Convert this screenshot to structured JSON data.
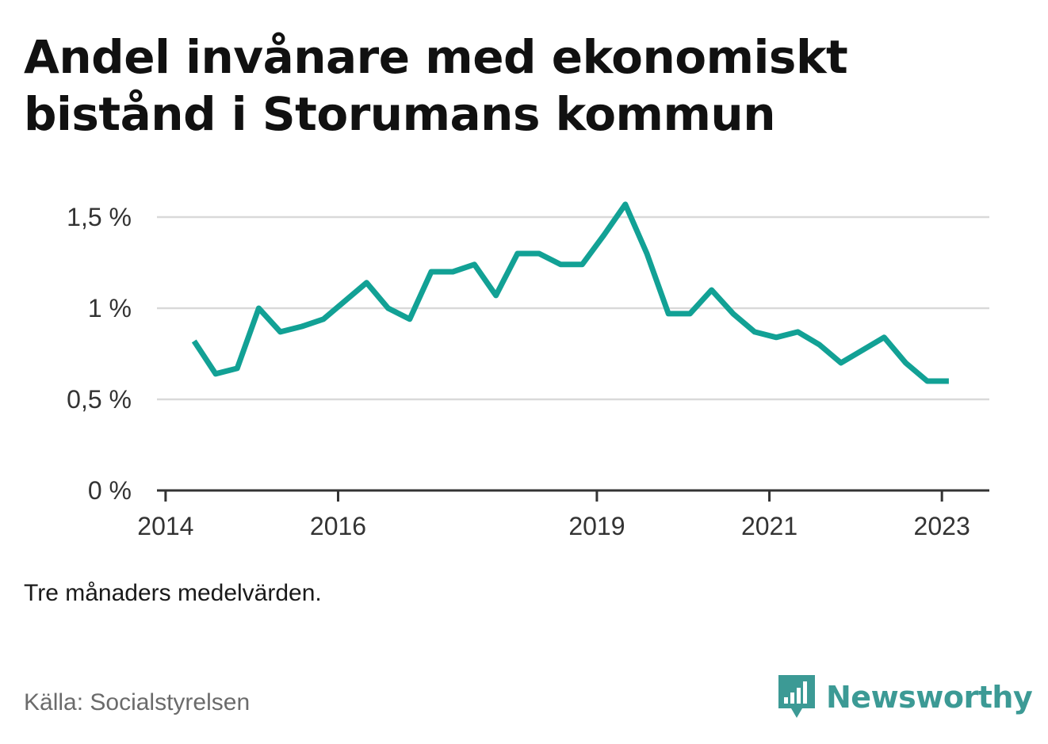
{
  "title": "Andel invånare med ekonomiskt bistånd i Storumans kommun",
  "note": "Tre månaders medelvärden.",
  "source": "Källa: Socialstyrelsen",
  "brand": {
    "name": "Newsworthy",
    "color": "#3c9a95",
    "logo_icon": "bar-chart-speech-bubble-icon"
  },
  "chart_data": {
    "type": "line",
    "title": "Andel invånare med ekonomiskt bistånd i Storumans kommun",
    "xlabel": "",
    "ylabel": "",
    "line_color": "#12a195",
    "grid": true,
    "ylim": [
      0,
      1.6
    ],
    "y_ticks": [
      {
        "value": 0,
        "label": "0 %"
      },
      {
        "value": 0.5,
        "label": "0,5 %"
      },
      {
        "value": 1,
        "label": "1 %"
      },
      {
        "value": 1.5,
        "label": "1,5 %"
      }
    ],
    "x_ticks": [
      {
        "value": 2014,
        "label": "2014"
      },
      {
        "value": 2016,
        "label": "2016"
      },
      {
        "value": 2019,
        "label": "2019"
      },
      {
        "value": 2021,
        "label": "2021"
      },
      {
        "value": 2023,
        "label": "2023"
      }
    ],
    "xlim": [
      2013.9,
      2023.55
    ],
    "x": [
      2014.33,
      2014.58,
      2014.83,
      2015.08,
      2015.33,
      2015.58,
      2015.83,
      2016.08,
      2016.33,
      2016.58,
      2016.83,
      2017.08,
      2017.33,
      2017.58,
      2017.83,
      2018.08,
      2018.33,
      2018.58,
      2018.83,
      2019.08,
      2019.33,
      2019.58,
      2019.83,
      2020.08,
      2020.33,
      2020.58,
      2020.83,
      2021.08,
      2021.33,
      2021.58,
      2021.83,
      2022.08,
      2022.33,
      2022.58,
      2022.83,
      2023.08
    ],
    "values": [
      0.82,
      0.64,
      0.67,
      1.0,
      0.87,
      0.9,
      0.94,
      1.04,
      1.14,
      1.0,
      0.94,
      1.2,
      1.2,
      1.24,
      1.07,
      1.3,
      1.3,
      1.24,
      1.24,
      1.4,
      1.57,
      1.3,
      0.97,
      0.97,
      1.1,
      0.97,
      0.87,
      0.84,
      0.87,
      0.8,
      0.7,
      0.77,
      0.84,
      0.7,
      0.6,
      0.6
    ]
  }
}
